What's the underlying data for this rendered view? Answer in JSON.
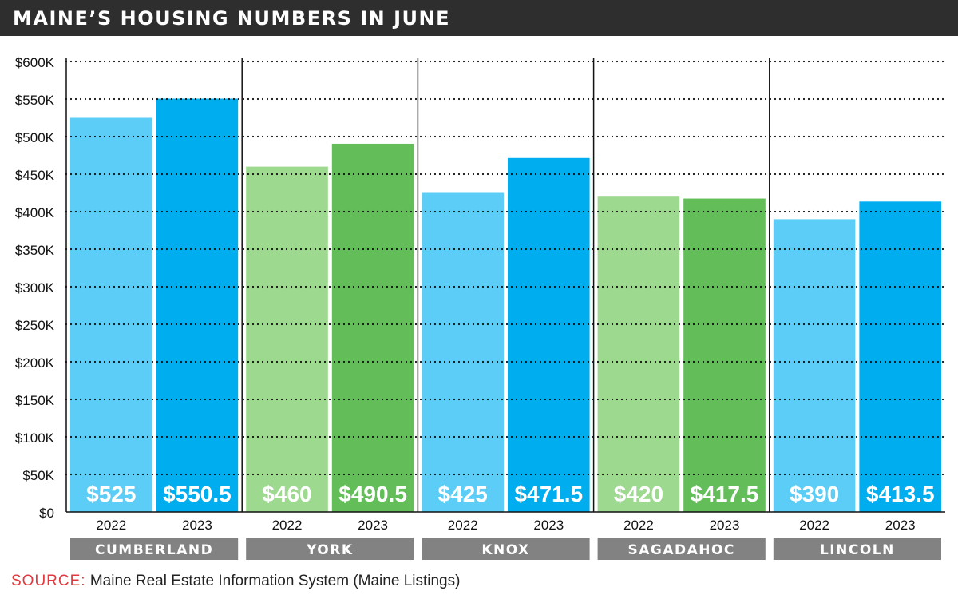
{
  "chart_data": {
    "type": "bar",
    "title": "MAINE’S HOUSING NUMBERS IN JUNE",
    "groups": [
      "CUMBERLAND",
      "YORK",
      "KNOX",
      "SAGADAHOC",
      "LINCOLN"
    ],
    "years": [
      "2022",
      "2023"
    ],
    "values": [
      [
        525,
        550.5
      ],
      [
        460,
        490.5
      ],
      [
        425,
        471.5
      ],
      [
        420,
        417.5
      ],
      [
        390,
        413.5
      ]
    ],
    "value_labels": [
      [
        "$525",
        "$550.5"
      ],
      [
        "$460",
        "$490.5"
      ],
      [
        "$425",
        "$471.5"
      ],
      [
        "$420",
        "$417.5"
      ],
      [
        "$390",
        "$413.5"
      ]
    ],
    "y_ticks": [
      0,
      50,
      100,
      150,
      200,
      250,
      300,
      350,
      400,
      450,
      500,
      550,
      600
    ],
    "y_tick_labels": [
      "$0",
      "$50K",
      "$100K",
      "$150K",
      "$200K",
      "$250K",
      "$300K",
      "$350K",
      "$400K",
      "$450K",
      "$500K",
      "$550K",
      "$600K"
    ],
    "ylim": [
      0,
      600
    ],
    "grid": "dotted horizontal",
    "colors": {
      "blue": [
        "#5bcdf7",
        "#00aeef"
      ],
      "green": [
        "#9dd98e",
        "#63be5a"
      ],
      "group_label_bg": "#828282",
      "title_bg": "#2e2e2e"
    }
  },
  "source": {
    "label": "SOURCE:",
    "text": "Maine Real Estate Information System (Maine Listings)"
  }
}
